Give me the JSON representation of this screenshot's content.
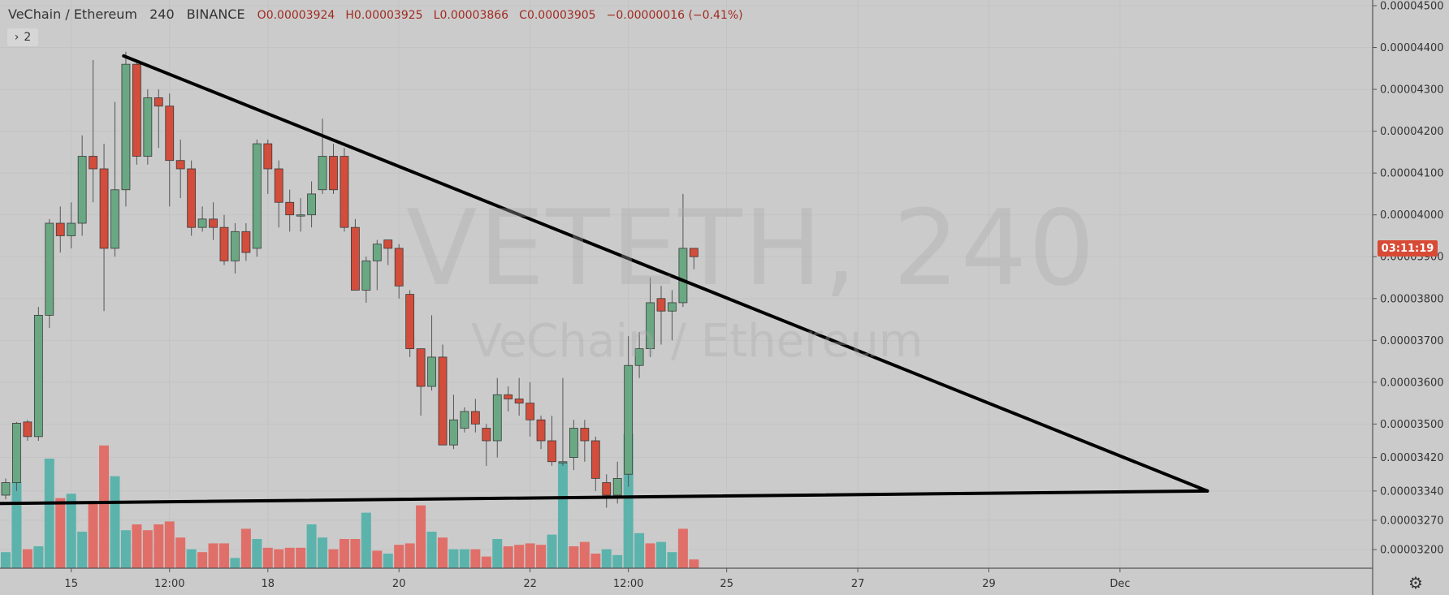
{
  "header": {
    "symbol": "VeChain / Ethereum",
    "interval": "240",
    "exchange": "BINANCE",
    "open": "O0.00003924",
    "high": "H0.00003925",
    "low": "L0.00003866",
    "close": "C0.00003905",
    "change": "−0.00000016 (−0.41%)"
  },
  "indicator_toggle": {
    "chevron": "›",
    "count": "2"
  },
  "watermark": {
    "big": "VETETH, 240",
    "small": "VeChain / Ethereum"
  },
  "countdown": "03:11:19",
  "settings_icon": "gear-icon",
  "colors": {
    "up": "#6aa883",
    "down": "#d24d3b",
    "vol_up": "#5cb3ac",
    "vol_down": "#e06f69",
    "background": "#cbcbcb"
  },
  "chart_data": {
    "type": "candlestick",
    "y_ticks": [
      "0.00004500",
      "0.00004400",
      "0.00004300",
      "0.00004200",
      "0.00004100",
      "0.00004000",
      "0.00003900",
      "0.00003800",
      "0.00003700",
      "0.00003600",
      "0.00003500",
      "0.00003420",
      "0.00003340",
      "0.00003270",
      "0.00003200"
    ],
    "y_tick_values": [
      4.5e-05,
      4.4e-05,
      4.3e-05,
      4.2e-05,
      4.1e-05,
      4e-05,
      3.9e-05,
      3.8e-05,
      3.7e-05,
      3.6e-05,
      3.5e-05,
      3.42e-05,
      3.34e-05,
      3.27e-05,
      3.2e-05
    ],
    "x_ticks": [
      {
        "label": "15",
        "bar": 6
      },
      {
        "label": "12:00",
        "bar": 15
      },
      {
        "label": "18",
        "bar": 24
      },
      {
        "label": "20",
        "bar": 36
      },
      {
        "label": "22",
        "bar": 48
      },
      {
        "label": "12:00",
        "bar": 57
      },
      {
        "label": "25",
        "bar": 66
      },
      {
        "label": "27",
        "bar": 78
      },
      {
        "label": "29",
        "bar": 90
      },
      {
        "label": "Dec",
        "bar": 102
      }
    ],
    "candles": [
      [
        3.33e-05,
        3.36e-05,
        3.37e-05,
        3.32e-05
      ],
      [
        3.36e-05,
        3.502e-05,
        3.505e-05,
        3.34e-05
      ],
      [
        3.505e-05,
        3.47e-05,
        3.51e-05,
        3.46e-05
      ],
      [
        3.47e-05,
        3.76e-05,
        3.78e-05,
        3.46e-05
      ],
      [
        3.76e-05,
        3.98e-05,
        3.99e-05,
        3.73e-05
      ],
      [
        3.98e-05,
        3.95e-05,
        4.02e-05,
        3.91e-05
      ],
      [
        3.95e-05,
        3.98e-05,
        4.03e-05,
        3.92e-05
      ],
      [
        3.98e-05,
        4.14e-05,
        4.19e-05,
        3.95e-05
      ],
      [
        4.14e-05,
        4.11e-05,
        4.37e-05,
        4.03e-05
      ],
      [
        4.11e-05,
        3.92e-05,
        4.17e-05,
        3.77e-05
      ],
      [
        3.92e-05,
        4.06e-05,
        4.27e-05,
        3.9e-05
      ],
      [
        4.06e-05,
        4.36e-05,
        4.39e-05,
        4.02e-05
      ],
      [
        4.36e-05,
        4.14e-05,
        4.37e-05,
        4.12e-05
      ],
      [
        4.14e-05,
        4.28e-05,
        4.3e-05,
        4.12e-05
      ],
      [
        4.28e-05,
        4.26e-05,
        4.3e-05,
        4.16e-05
      ],
      [
        4.26e-05,
        4.13e-05,
        4.29e-05,
        4.02e-05
      ],
      [
        4.13e-05,
        4.11e-05,
        4.18e-05,
        4.04e-05
      ],
      [
        4.11e-05,
        3.97e-05,
        4.13e-05,
        3.95e-05
      ],
      [
        3.97e-05,
        3.99e-05,
        4.02e-05,
        3.96e-05
      ],
      [
        3.99e-05,
        3.97e-05,
        4.03e-05,
        3.94e-05
      ],
      [
        3.97e-05,
        3.89e-05,
        4e-05,
        3.88e-05
      ],
      [
        3.89e-05,
        3.96e-05,
        3.98e-05,
        3.86e-05
      ],
      [
        3.96e-05,
        3.91e-05,
        3.98e-05,
        3.89e-05
      ],
      [
        3.92e-05,
        4.17e-05,
        4.18e-05,
        3.9e-05
      ],
      [
        4.17e-05,
        4.11e-05,
        4.18e-05,
        4.05e-05
      ],
      [
        4.11e-05,
        4.03e-05,
        4.13e-05,
        3.97e-05
      ],
      [
        4.03e-05,
        4e-05,
        4.06e-05,
        3.96e-05
      ],
      [
        4e-05,
        4e-05,
        4.04e-05,
        3.96e-05
      ],
      [
        4e-05,
        4.05e-05,
        4.08e-05,
        3.97e-05
      ],
      [
        4.06e-05,
        4.14e-05,
        4.23e-05,
        4.05e-05
      ],
      [
        4.14e-05,
        4.06e-05,
        4.17e-05,
        4.05e-05
      ],
      [
        4.14e-05,
        3.97e-05,
        4.16e-05,
        3.96e-05
      ],
      [
        3.97e-05,
        3.82e-05,
        3.99e-05,
        3.82e-05
      ],
      [
        3.82e-05,
        3.89e-05,
        3.9e-05,
        3.79e-05
      ],
      [
        3.89e-05,
        3.93e-05,
        3.94e-05,
        3.82e-05
      ],
      [
        3.94e-05,
        3.92e-05,
        3.94e-05,
        3.88e-05
      ],
      [
        3.92e-05,
        3.83e-05,
        3.93e-05,
        3.8e-05
      ],
      [
        3.81e-05,
        3.68e-05,
        3.82e-05,
        3.66e-05
      ],
      [
        3.68e-05,
        3.59e-05,
        3.68e-05,
        3.52e-05
      ],
      [
        3.59e-05,
        3.66e-05,
        3.76e-05,
        3.58e-05
      ],
      [
        3.66e-05,
        3.45e-05,
        3.69e-05,
        3.45e-05
      ],
      [
        3.45e-05,
        3.51e-05,
        3.57e-05,
        3.44e-05
      ],
      [
        3.49e-05,
        3.53e-05,
        3.54e-05,
        3.48e-05
      ],
      [
        3.53e-05,
        3.5e-05,
        3.56e-05,
        3.48e-05
      ],
      [
        3.49e-05,
        3.46e-05,
        3.5e-05,
        3.4e-05
      ],
      [
        3.46e-05,
        3.57e-05,
        3.61e-05,
        3.42e-05
      ],
      [
        3.57e-05,
        3.56e-05,
        3.59e-05,
        3.53e-05
      ],
      [
        3.56e-05,
        3.55e-05,
        3.61e-05,
        3.52e-05
      ],
      [
        3.55e-05,
        3.51e-05,
        3.6e-05,
        3.47e-05
      ],
      [
        3.51e-05,
        3.46e-05,
        3.52e-05,
        3.44e-05
      ],
      [
        3.46e-05,
        3.41e-05,
        3.52e-05,
        3.4e-05
      ],
      [
        3.41e-05,
        3.41e-05,
        3.61e-05,
        3.4e-05
      ],
      [
        3.42e-05,
        3.49e-05,
        3.51e-05,
        3.39e-05
      ],
      [
        3.49e-05,
        3.46e-05,
        3.51e-05,
        3.41e-05
      ],
      [
        3.46e-05,
        3.37e-05,
        3.47e-05,
        3.34e-05
      ],
      [
        3.36e-05,
        3.33e-05,
        3.38e-05,
        3.3e-05
      ],
      [
        3.33e-05,
        3.37e-05,
        3.41e-05,
        3.31e-05
      ],
      [
        3.38e-05,
        3.64e-05,
        3.71e-05,
        3.35e-05
      ],
      [
        3.64e-05,
        3.68e-05,
        3.72e-05,
        3.61e-05
      ],
      [
        3.68e-05,
        3.79e-05,
        3.85e-05,
        3.66e-05
      ],
      [
        3.8e-05,
        3.77e-05,
        3.83e-05,
        3.69e-05
      ],
      [
        3.77e-05,
        3.79e-05,
        3.82e-05,
        3.7e-05
      ],
      [
        3.79e-05,
        3.92e-05,
        4.05e-05,
        3.78e-05
      ],
      [
        3.92e-05,
        3.9e-05,
        3.92e-05,
        3.87e-05
      ]
    ],
    "volume_rel": [
      0.11,
      0.59,
      0.13,
      0.15,
      0.75,
      0.48,
      0.51,
      0.25,
      0.45,
      0.84,
      0.63,
      0.26,
      0.3,
      0.26,
      0.3,
      0.32,
      0.21,
      0.13,
      0.11,
      0.17,
      0.17,
      0.07,
      0.27,
      0.2,
      0.14,
      0.13,
      0.14,
      0.14,
      0.3,
      0.21,
      0.13,
      0.2,
      0.2,
      0.38,
      0.12,
      0.1,
      0.16,
      0.17,
      0.43,
      0.25,
      0.21,
      0.13,
      0.13,
      0.13,
      0.08,
      0.2,
      0.15,
      0.16,
      0.17,
      0.16,
      0.23,
      0.72,
      0.15,
      0.18,
      0.1,
      0.13,
      0.09,
      0.92,
      0.24,
      0.17,
      0.18,
      0.11,
      0.27,
      0.06
    ],
    "volume_up": [
      true,
      true,
      false,
      true,
      true,
      false,
      true,
      true,
      false,
      false,
      true,
      true,
      false,
      false,
      false,
      false,
      false,
      true,
      false,
      false,
      false,
      true,
      false,
      true,
      false,
      false,
      false,
      false,
      true,
      true,
      false,
      false,
      false,
      true,
      false,
      true,
      false,
      false,
      false,
      true,
      false,
      true,
      true,
      false,
      false,
      true,
      false,
      false,
      false,
      false,
      true,
      true,
      false,
      false,
      false,
      true,
      true,
      true,
      true,
      false,
      true,
      true,
      false,
      false
    ],
    "trendlines": [
      {
        "name": "descending",
        "from": [
          10.8,
          4.38e-05
        ],
        "to": [
          110,
          3.34e-05
        ]
      },
      {
        "name": "support",
        "from": [
          -0.6,
          3.31e-05
        ],
        "to": [
          110,
          3.34e-05
        ]
      }
    ],
    "last_price": "0.00003905"
  }
}
